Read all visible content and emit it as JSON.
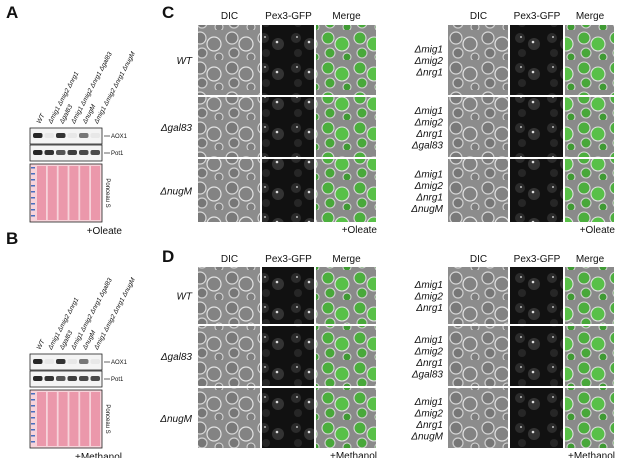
{
  "panel_a": {
    "label": "A",
    "lanes": [
      "WT",
      "Δmig1 Δmig2 Δnrg1",
      "Δgal83",
      "Δmig1 Δmig2 Δnrg1 Δgal83",
      "ΔnugM",
      "Δmig1 Δmig2 Δnrg1 ΔnugM"
    ],
    "bands": [
      "AOX1",
      "Pot1"
    ],
    "stain": "Ponceau S",
    "condition": "+Oleate"
  },
  "panel_b": {
    "label": "B",
    "lanes": [
      "WT",
      "Δmig1 Δmig2 Δnrg1",
      "Δgal83",
      "Δmig1 Δmig2 Δnrg1 Δgal83",
      "ΔnugM",
      "Δmig1 Δmig2 Δnrg1 ΔnugM"
    ],
    "bands": [
      "AOX1",
      "Pot1"
    ],
    "stain": "Ponceau S",
    "condition": "+Methanol"
  },
  "panel_c": {
    "label": "C",
    "columns": [
      "DIC",
      "Pex3-GFP",
      "Merge"
    ],
    "rows": [
      "WT",
      "Δgal83",
      "ΔnugM"
    ],
    "rows_right": [
      [
        "Δmig1",
        "Δmig2",
        "Δnrg1"
      ],
      [
        "Δmig1",
        "Δmig2",
        "Δnrg1",
        "Δgal83"
      ],
      [
        "Δmig1",
        "Δmig2",
        "Δnrg1",
        "ΔnugM"
      ]
    ],
    "condition": "+Oleate"
  },
  "panel_d": {
    "label": "D",
    "columns": [
      "DIC",
      "Pex3-GFP",
      "Merge"
    ],
    "rows": [
      "WT",
      "Δgal83",
      "ΔnugM"
    ],
    "rows_right": [
      [
        "Δmig1",
        "Δmig2",
        "Δnrg1"
      ],
      [
        "Δmig1",
        "Δmig2",
        "Δnrg1",
        "Δgal83"
      ],
      [
        "Δmig1",
        "Δmig2",
        "Δnrg1",
        "ΔnugM"
      ]
    ],
    "condition": "+Methanol"
  }
}
